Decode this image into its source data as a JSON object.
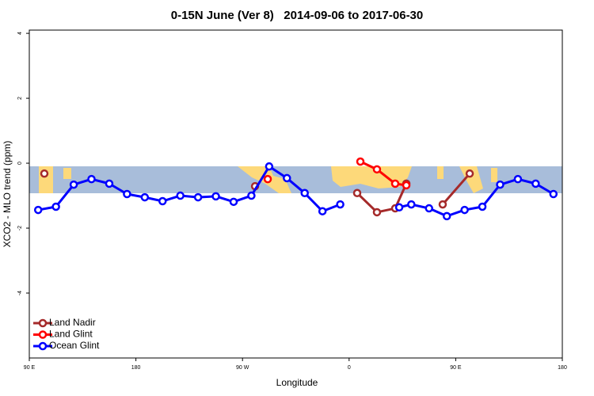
{
  "chart_data": {
    "type": "line",
    "title": "0-15N June (Ver 8)   2014-09-06 to 2017-06-30",
    "x_label": "Longitude",
    "y_label": "XCO2 - MLO trend (ppm)",
    "xlim": [
      90,
      540
    ],
    "xticks": [
      {
        "value": 90,
        "label": "90 E"
      },
      {
        "value": 180,
        "label": "180"
      },
      {
        "value": 270,
        "label": "90 W"
      },
      {
        "value": 360,
        "label": "0"
      },
      {
        "value": 450,
        "label": "90 E"
      },
      {
        "value": 540,
        "label": "180"
      }
    ],
    "ylim": [
      -6,
      4.1
    ],
    "yticks": [
      4,
      2,
      0,
      -2,
      -4
    ],
    "grid": false,
    "legend": "bottom-left",
    "series": [
      {
        "name": "Land Nadir",
        "color": "#a52a2a",
        "x": [
          102.7,
          200,
          280.6,
          330,
          366.8,
          383.5,
          398.9,
          408.3,
          425,
          439,
          461.8
        ],
        "values": [
          -0.32,
          null,
          -0.71,
          null,
          -0.92,
          -1.51,
          -1.39,
          -0.63,
          null,
          -1.27,
          -0.32
        ]
      },
      {
        "name": "Land Glint",
        "color": "#ff0000",
        "x": [
          291.3,
          330,
          369.5,
          383.5,
          398.9,
          408.3
        ],
        "values": [
          -0.49,
          null,
          0.05,
          -0.19,
          -0.63,
          -0.68
        ]
      },
      {
        "name": "Ocean Glint",
        "color": "#0000ff",
        "x": [
          97.5,
          112.5,
          127.5,
          142.5,
          157.5,
          172.5,
          187.5,
          202.5,
          217.5,
          232.5,
          247.5,
          262.5,
          277.5,
          292.5,
          307.5,
          322.5,
          337.5,
          352.5,
          377.5,
          402.3,
          412.5,
          427.5,
          442.5,
          457.5,
          472.5,
          487.5,
          502.5,
          517.5,
          532.5
        ],
        "values": [
          -1.44,
          -1.34,
          -0.66,
          -0.49,
          -0.63,
          -0.95,
          -1.05,
          -1.17,
          -1.0,
          -1.05,
          -1.02,
          -1.19,
          -1.0,
          -0.1,
          -0.46,
          -0.92,
          -1.48,
          -1.27,
          null,
          -1.36,
          -1.27,
          -1.39,
          -1.63,
          -1.44,
          -1.34,
          -0.66,
          -0.49,
          -0.63,
          -0.95
        ]
      }
    ]
  }
}
